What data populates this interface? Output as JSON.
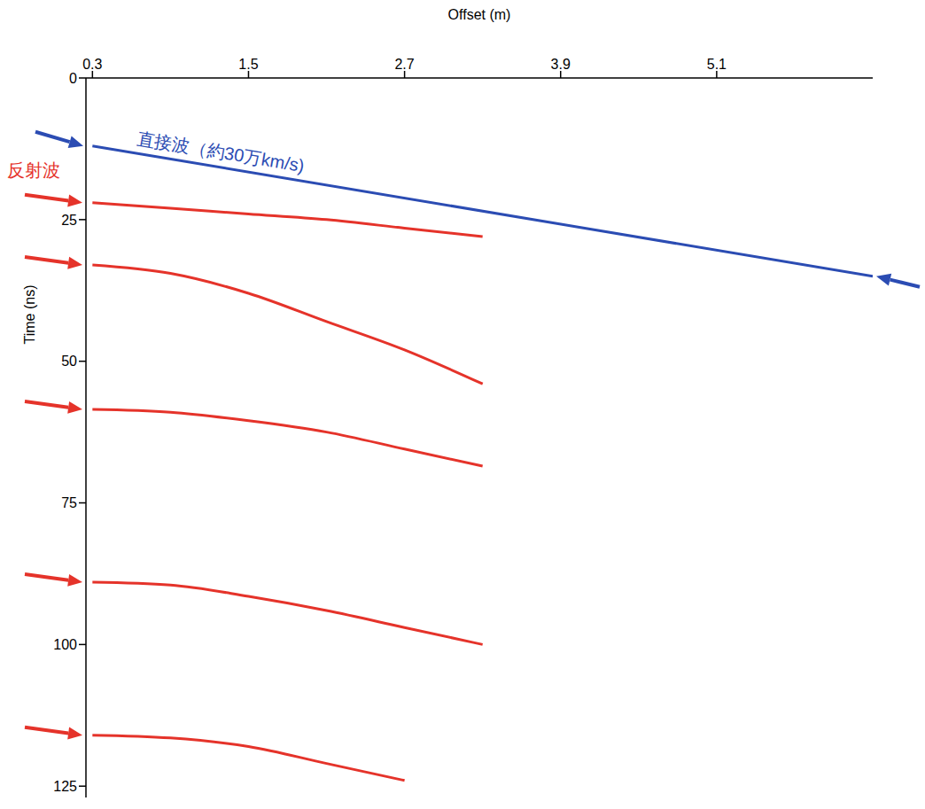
{
  "chart_data": {
    "type": "line",
    "x_label": "Offset (m)",
    "y_label": "Time (ns)",
    "xlim": [
      0.25,
      6.3
    ],
    "xticks": [
      0.3,
      1.5,
      2.7,
      3.9,
      5.1
    ],
    "ylim": [
      0,
      127
    ],
    "yticks": [
      0,
      25,
      50,
      75,
      100,
      125
    ],
    "grid": false,
    "series": [
      {
        "name": "直接波（約30万km/s)",
        "color": "#2b4cb3",
        "x": [
          0.3,
          6.3
        ],
        "values": [
          12,
          35
        ]
      },
      {
        "name": "反射波",
        "color": "#e5332a",
        "events": [
          {
            "x": [
              0.3,
              0.9,
              1.5,
              2.1,
              2.7,
              3.3
            ],
            "values": [
              22,
              23,
              24,
              25,
              26.5,
              28
            ]
          },
          {
            "x": [
              0.3,
              0.9,
              1.5,
              2.1,
              2.7,
              3.3
            ],
            "values": [
              33,
              34.5,
              38,
              43,
              48,
              54
            ]
          },
          {
            "x": [
              0.3,
              0.9,
              1.5,
              2.1,
              2.7,
              3.3
            ],
            "values": [
              58.5,
              59,
              60.5,
              62.5,
              65.5,
              68.5
            ]
          },
          {
            "x": [
              0.3,
              0.9,
              1.5,
              2.1,
              2.7,
              3.3
            ],
            "values": [
              89,
              89.5,
              91.5,
              94,
              97,
              100
            ]
          },
          {
            "x": [
              0.3,
              0.9,
              1.5,
              2.1,
              2.7
            ],
            "values": [
              116,
              116.5,
              118,
              121,
              124
            ]
          }
        ]
      }
    ]
  }
}
